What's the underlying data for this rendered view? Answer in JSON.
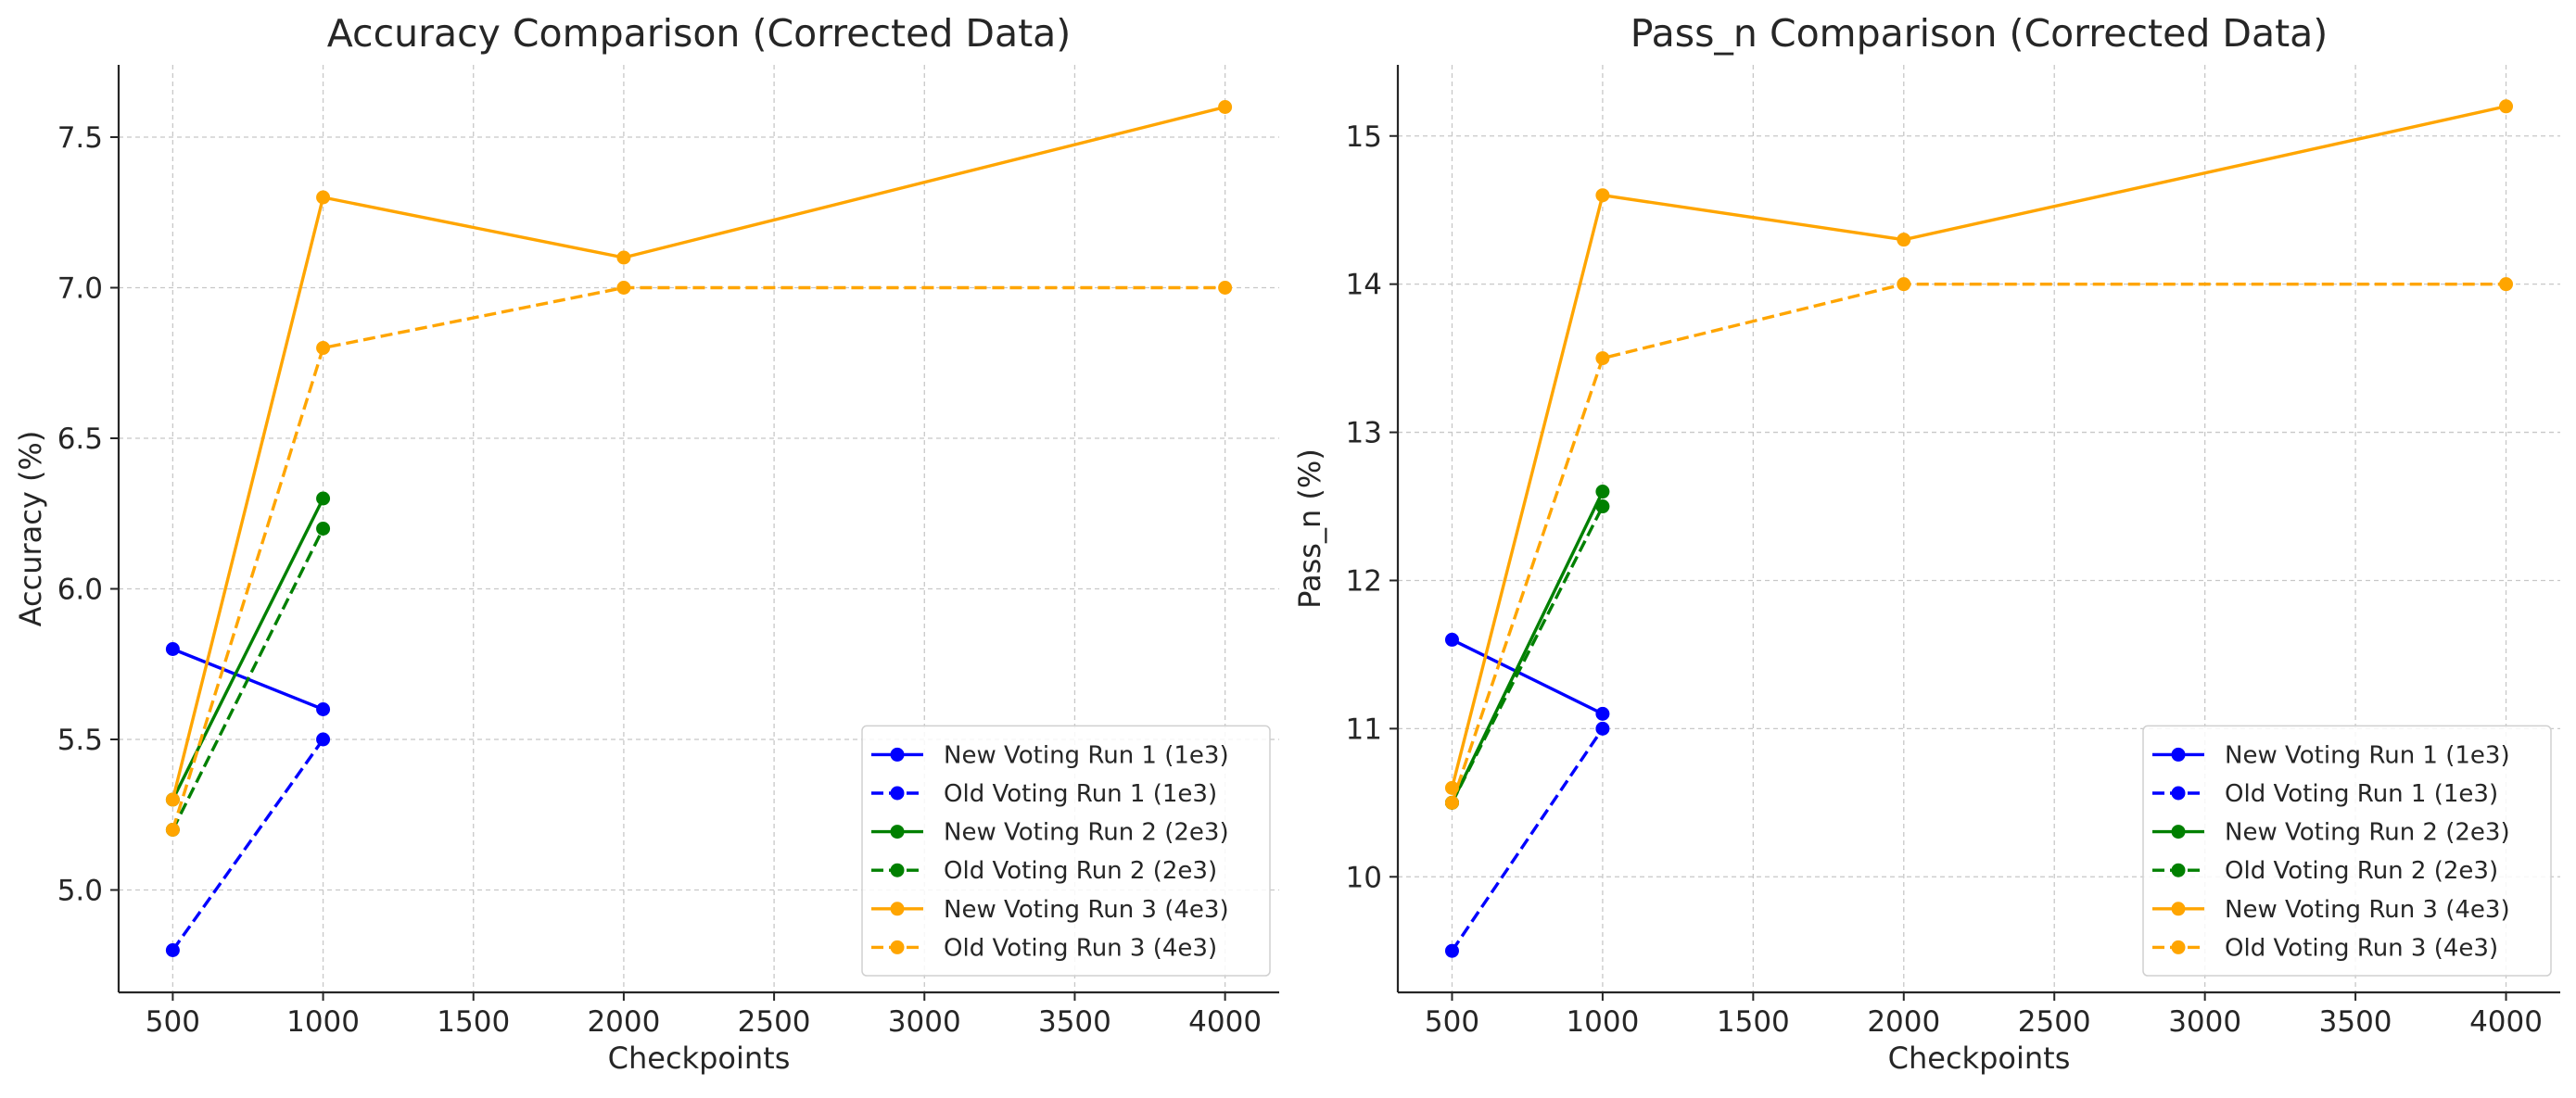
{
  "chart_data": [
    {
      "type": "line",
      "title": "Accuracy Comparison (Corrected Data)",
      "xlabel": "Checkpoints",
      "ylabel": "Accuracy (%)",
      "xlim": [
        320,
        4180
      ],
      "ylim": [
        4.66,
        7.74
      ],
      "xticks": [
        500,
        1000,
        1500,
        2000,
        2500,
        3000,
        3500,
        4000
      ],
      "yticks": [
        5.0,
        5.5,
        6.0,
        6.5,
        7.0,
        7.5
      ],
      "xtick_labels": [
        "500",
        "1000",
        "1500",
        "2000",
        "2500",
        "3000",
        "3500",
        "4000"
      ],
      "ytick_labels": [
        "5.0",
        "5.5",
        "6.0",
        "6.5",
        "7.0",
        "7.5"
      ],
      "grid": true,
      "legend_position": "bottom-right",
      "series": [
        {
          "name": "New Voting Run 1 (1e3)",
          "color": "#0000ff",
          "style": "solid",
          "x": [
            500,
            1000
          ],
          "y": [
            5.8,
            5.6
          ]
        },
        {
          "name": "Old Voting Run 1 (1e3)",
          "color": "#0000ff",
          "style": "dashed",
          "x": [
            500,
            1000
          ],
          "y": [
            4.8,
            5.5
          ]
        },
        {
          "name": "New Voting Run 2 (2e3)",
          "color": "#008000",
          "style": "solid",
          "x": [
            500,
            1000
          ],
          "y": [
            5.3,
            6.3
          ]
        },
        {
          "name": "Old Voting Run 2 (2e3)",
          "color": "#008000",
          "style": "dashed",
          "x": [
            500,
            1000
          ],
          "y": [
            5.2,
            6.2
          ]
        },
        {
          "name": "New Voting Run 3 (4e3)",
          "color": "#ffa500",
          "style": "solid",
          "x": [
            500,
            1000,
            2000,
            4000
          ],
          "y": [
            5.3,
            7.3,
            7.1,
            7.6
          ]
        },
        {
          "name": "Old Voting Run 3 (4e3)",
          "color": "#ffa500",
          "style": "dashed",
          "x": [
            500,
            1000,
            2000,
            4000
          ],
          "y": [
            5.2,
            6.8,
            7.0,
            7.0
          ]
        }
      ]
    },
    {
      "type": "line",
      "title": "Pass_n Comparison (Corrected Data)",
      "xlabel": "Checkpoints",
      "ylabel": "Pass_n (%)",
      "xlim": [
        320,
        4180
      ],
      "ylim": [
        9.22,
        15.48
      ],
      "xticks": [
        500,
        1000,
        1500,
        2000,
        2500,
        3000,
        3500,
        4000
      ],
      "yticks": [
        10,
        11,
        12,
        13,
        14,
        15
      ],
      "xtick_labels": [
        "500",
        "1000",
        "1500",
        "2000",
        "2500",
        "3000",
        "3500",
        "4000"
      ],
      "ytick_labels": [
        "10",
        "11",
        "12",
        "13",
        "14",
        "15"
      ],
      "grid": true,
      "legend_position": "bottom-right",
      "series": [
        {
          "name": "New Voting Run 1 (1e3)",
          "color": "#0000ff",
          "style": "solid",
          "x": [
            500,
            1000
          ],
          "y": [
            11.6,
            11.1
          ]
        },
        {
          "name": "Old Voting Run 1 (1e3)",
          "color": "#0000ff",
          "style": "dashed",
          "x": [
            500,
            1000
          ],
          "y": [
            9.5,
            11.0
          ]
        },
        {
          "name": "New Voting Run 2 (2e3)",
          "color": "#008000",
          "style": "solid",
          "x": [
            500,
            1000
          ],
          "y": [
            10.5,
            12.6
          ]
        },
        {
          "name": "Old Voting Run 2 (2e3)",
          "color": "#008000",
          "style": "dashed",
          "x": [
            500,
            1000
          ],
          "y": [
            10.5,
            12.5
          ]
        },
        {
          "name": "New Voting Run 3 (4e3)",
          "color": "#ffa500",
          "style": "solid",
          "x": [
            500,
            1000,
            2000,
            4000
          ],
          "y": [
            10.6,
            14.6,
            14.3,
            15.2
          ]
        },
        {
          "name": "Old Voting Run 3 (4e3)",
          "color": "#ffa500",
          "style": "dashed",
          "x": [
            500,
            1000,
            2000,
            4000
          ],
          "y": [
            10.5,
            13.5,
            14.0,
            14.0
          ]
        }
      ]
    }
  ]
}
